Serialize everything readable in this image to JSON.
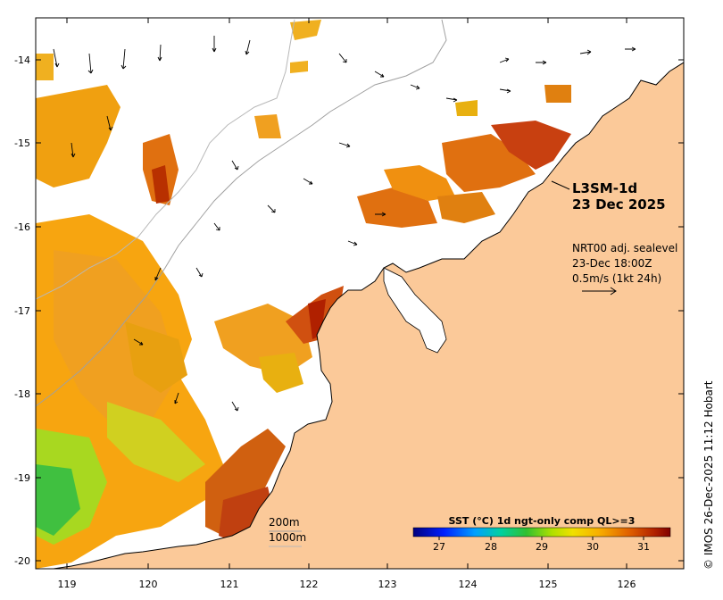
{
  "map": {
    "product_label": "L3SM-1d",
    "date_label": "23 Dec 2025",
    "current_source": "NRT00 adj. sealevel",
    "current_time": "23-Dec 18:00Z",
    "scale_vector": "0.5m/s (1kt 24h)",
    "contour_200": "200m",
    "contour_1000": "1000m",
    "credit": "© IMOS 26-Dec-2025 11:12 Hobart",
    "lon_ticks": [
      "119",
      "120",
      "121",
      "122",
      "123",
      "124",
      "125",
      "126"
    ],
    "lat_ticks": [
      "-14",
      "-15",
      "-16",
      "-17",
      "-18",
      "-19",
      "-20"
    ],
    "lon_range": [
      118.6,
      127.0
    ],
    "lat_range": [
      -20.1,
      -13.5
    ]
  },
  "colorbar": {
    "title": "SST (°C) 1d ngt-only comp QL>=3",
    "ticks": [
      "27",
      "28",
      "29",
      "30",
      "31"
    ],
    "range": [
      26.6,
      31.5
    ]
  },
  "colors": {
    "land": "#fbc999",
    "ocean": "#ffffff",
    "frame": "#000000"
  }
}
